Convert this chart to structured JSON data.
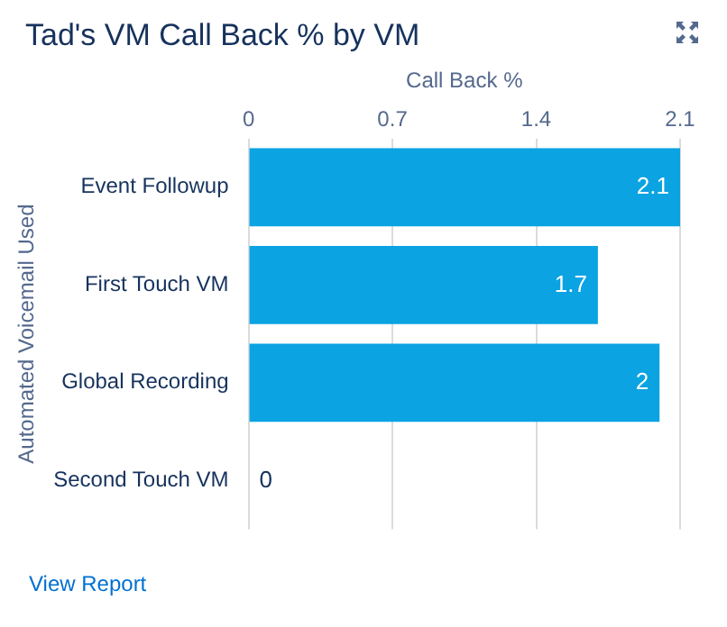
{
  "chart_data": {
    "type": "bar",
    "title": "Tad's VM Call Back % by VM",
    "xlabel": "Call Back %",
    "ylabel": "Automated Voicemail Used",
    "orientation": "horizontal",
    "categories": [
      "Event Followup",
      "First Touch VM",
      "Global Recording",
      "Second Touch VM"
    ],
    "values": [
      2.1,
      1.7,
      2,
      0
    ],
    "color": "#0ba3e2",
    "xlim": [
      0,
      2.1
    ],
    "xticks": [
      0,
      0.7,
      1.4,
      2.1
    ],
    "grid": "x",
    "data_labels": true,
    "legend": false,
    "annotations": [
      "View Report"
    ]
  }
}
